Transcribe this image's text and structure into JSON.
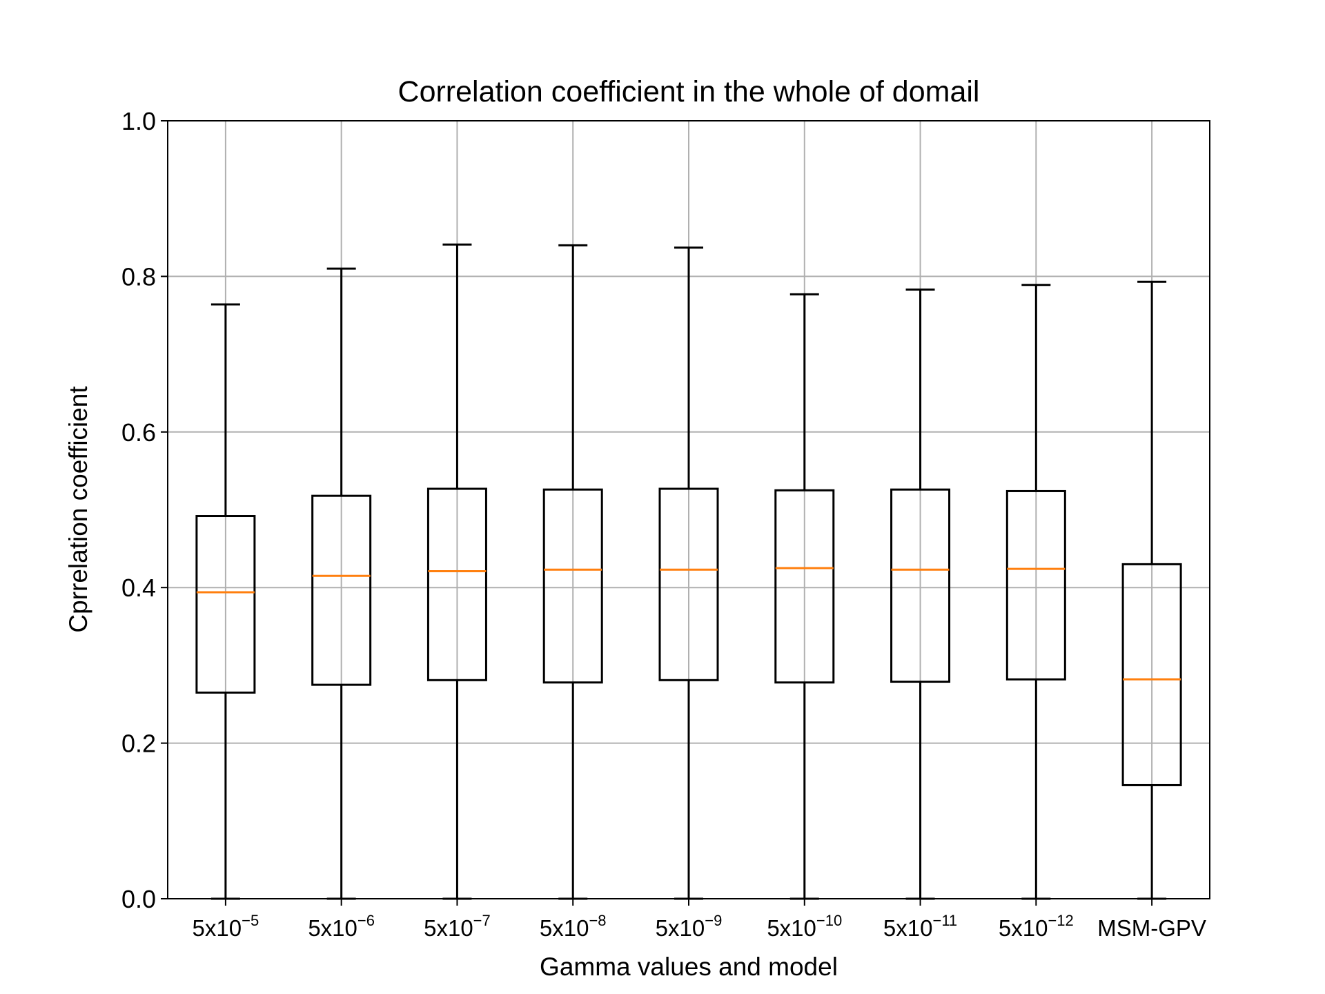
{
  "chart_data": {
    "type": "box",
    "title": "Correlation coefficient in the whole of domail",
    "xlabel": "Gamma values and model",
    "ylabel": "Cprrelation coefficient",
    "ylim": [
      0.0,
      1.0
    ],
    "yticks": [
      "0.0",
      "0.2",
      "0.4",
      "0.6",
      "0.8",
      "1.0"
    ],
    "grid": true,
    "categories": [
      {
        "base": "5x10",
        "exp": "−5"
      },
      {
        "base": "5x10",
        "exp": "−6"
      },
      {
        "base": "5x10",
        "exp": "−7"
      },
      {
        "base": "5x10",
        "exp": "−8"
      },
      {
        "base": "5x10",
        "exp": "−9"
      },
      {
        "base": "5x10",
        "exp": "−10"
      },
      {
        "base": "5x10",
        "exp": "−11"
      },
      {
        "base": "5x10",
        "exp": "−12"
      },
      {
        "base": "MSM-GPV",
        "exp": ""
      }
    ],
    "boxes": [
      {
        "whislo": 0.0,
        "q1": 0.265,
        "med": 0.394,
        "q3": 0.492,
        "whishi": 0.764
      },
      {
        "whislo": 0.0,
        "q1": 0.275,
        "med": 0.415,
        "q3": 0.518,
        "whishi": 0.81
      },
      {
        "whislo": 0.0,
        "q1": 0.281,
        "med": 0.421,
        "q3": 0.527,
        "whishi": 0.841
      },
      {
        "whislo": 0.0,
        "q1": 0.278,
        "med": 0.423,
        "q3": 0.526,
        "whishi": 0.84
      },
      {
        "whislo": 0.0,
        "q1": 0.281,
        "med": 0.423,
        "q3": 0.527,
        "whishi": 0.837
      },
      {
        "whislo": 0.0,
        "q1": 0.278,
        "med": 0.425,
        "q3": 0.525,
        "whishi": 0.777
      },
      {
        "whislo": 0.0,
        "q1": 0.279,
        "med": 0.423,
        "q3": 0.526,
        "whishi": 0.783
      },
      {
        "whislo": 0.0,
        "q1": 0.282,
        "med": 0.424,
        "q3": 0.524,
        "whishi": 0.789
      },
      {
        "whislo": 0.0,
        "q1": 0.146,
        "med": 0.282,
        "q3": 0.43,
        "whishi": 0.793
      }
    ],
    "colors": {
      "box": "#000000",
      "median": "#ff7f0e",
      "grid": "#b0b0b0"
    }
  }
}
